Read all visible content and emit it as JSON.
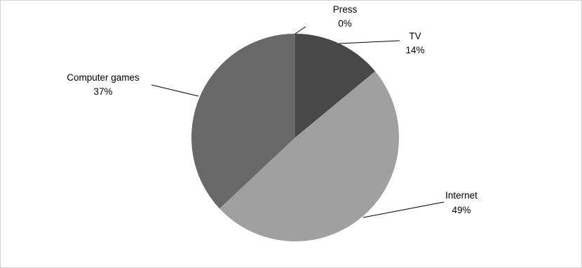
{
  "chart_data": {
    "type": "pie",
    "title": "",
    "slices": [
      {
        "label": "Press",
        "value": 0,
        "value_label": "0%",
        "color": "#3f3f3f"
      },
      {
        "label": "TV",
        "value": 14,
        "value_label": "14%",
        "color": "#484848"
      },
      {
        "label": "Internet",
        "value": 49,
        "value_label": "49%",
        "color": "#a0a0a0"
      },
      {
        "label": "Computer games",
        "value": 37,
        "value_label": "37%",
        "color": "#686868"
      }
    ],
    "start_angle_deg": 0,
    "direction": "clockwise",
    "legend": "none"
  }
}
